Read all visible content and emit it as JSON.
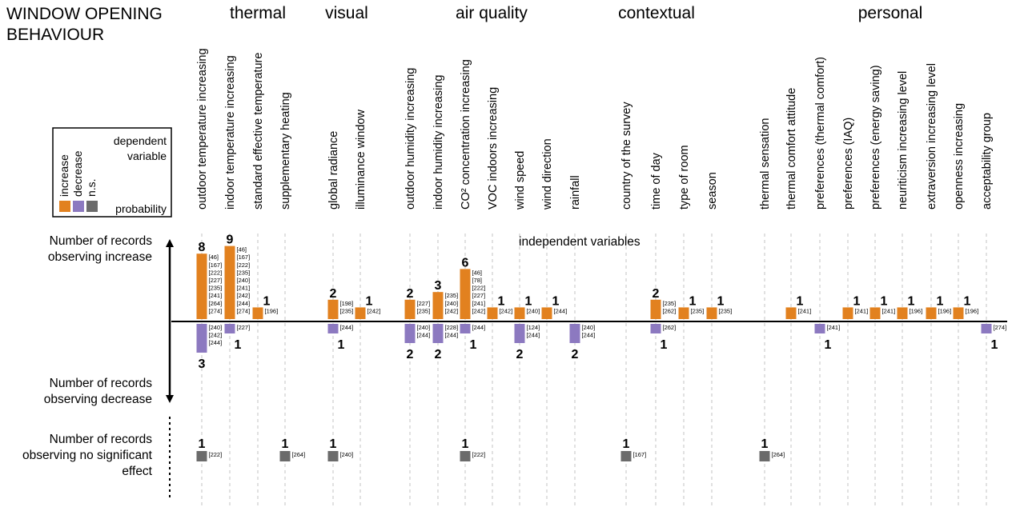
{
  "title": {
    "line1": "WINDOW OPENING",
    "line2": "BEHAVIOUR"
  },
  "colors": {
    "increase": "#E2811F",
    "decrease": "#8C79C0",
    "ns": "#6B6B6B"
  },
  "categories": [
    "thermal",
    "visual",
    "air quality",
    "contextual",
    "personal"
  ],
  "legend": {
    "labels": [
      "increase",
      "decrease",
      "n.s."
    ],
    "dependent_line1": "dependent",
    "dependent_line2": "variable",
    "probability": "probability"
  },
  "axis": {
    "increase_line1": "Number of records",
    "increase_line2": "observing increase",
    "decrease_line1": "Number of records",
    "decrease_line2": "observing decrease",
    "ns_line1": "Number of records",
    "ns_line2": "observing no significant",
    "ns_line3": "effect",
    "independent": "independent variables"
  },
  "chart_data": {
    "type": "bar",
    "series": [
      {
        "name": "increase"
      },
      {
        "name": "decrease"
      },
      {
        "name": "n.s."
      }
    ],
    "variables": [
      {
        "name": "outdoor temperature increasing",
        "category": "thermal",
        "inc": 8,
        "inc_refs": [
          "[46]",
          "[167]",
          "[222]",
          "[227]",
          "[235]",
          "[241]",
          "[264]",
          "[274]"
        ],
        "dec": 3,
        "dec_refs": [
          "[240]",
          "[242]",
          "[244]"
        ],
        "ns": 1,
        "ns_refs": [
          "[222]"
        ]
      },
      {
        "name": "indoor temperature increasing",
        "category": "thermal",
        "inc": 9,
        "inc_refs": [
          "[46]",
          "[167]",
          "[222]",
          "[235]",
          "[240]",
          "[241]",
          "[242]",
          "[244]",
          "[274]"
        ],
        "dec": 1,
        "dec_refs": [
          "[227]"
        ],
        "ns": 0,
        "ns_refs": []
      },
      {
        "name": "standard effective temperature",
        "category": "thermal",
        "inc": 1,
        "inc_refs": [
          "[196]"
        ],
        "dec": 0,
        "dec_refs": [],
        "ns": 0,
        "ns_refs": []
      },
      {
        "name": "supplementary heating",
        "category": "thermal",
        "inc": 0,
        "inc_refs": [],
        "dec": 0,
        "dec_refs": [],
        "ns": 1,
        "ns_refs": [
          "[264]"
        ]
      },
      {
        "name": "global radiance",
        "category": "visual",
        "inc": 2,
        "inc_refs": [
          "[198]",
          "[235]"
        ],
        "dec": 1,
        "dec_refs": [
          "[244]"
        ],
        "ns": 1,
        "ns_refs": [
          "[240]"
        ]
      },
      {
        "name": "illuminance window",
        "category": "visual",
        "inc": 1,
        "inc_refs": [
          "[242]"
        ],
        "dec": 0,
        "dec_refs": [],
        "ns": 0,
        "ns_refs": []
      },
      {
        "name": "outdoor humidity increasing",
        "category": "air quality",
        "inc": 2,
        "inc_refs": [
          "[227]",
          "[235]"
        ],
        "dec": 2,
        "dec_refs": [
          "[240]",
          "[244]"
        ],
        "ns": 0,
        "ns_refs": []
      },
      {
        "name": "indoor humidity increasing",
        "category": "air quality",
        "inc": 3,
        "inc_refs": [
          "[235]",
          "[240]",
          "[242]"
        ],
        "dec": 2,
        "dec_refs": [
          "[228]",
          "[244]"
        ],
        "ns": 0,
        "ns_refs": []
      },
      {
        "name": "CO² concentration increasing",
        "category": "air quality",
        "inc": 6,
        "inc_refs": [
          "[46]",
          "[78]",
          "[222]",
          "[227]",
          "[241]",
          "[242]"
        ],
        "dec": 1,
        "dec_refs": [
          "[244]"
        ],
        "ns": 1,
        "ns_refs": [
          "[222]"
        ]
      },
      {
        "name": "VOC indoors increasing",
        "category": "air quality",
        "inc": 1,
        "inc_refs": [
          "[242]"
        ],
        "dec": 0,
        "dec_refs": [],
        "ns": 0,
        "ns_refs": []
      },
      {
        "name": "wind speed",
        "category": "air quality",
        "inc": 1,
        "inc_refs": [
          "[240]"
        ],
        "dec": 2,
        "dec_refs": [
          "[124]",
          "[244]"
        ],
        "ns": 0,
        "ns_refs": []
      },
      {
        "name": "wind direction",
        "category": "air quality",
        "inc": 1,
        "inc_refs": [
          "[244]"
        ],
        "dec": 0,
        "dec_refs": [],
        "ns": 0,
        "ns_refs": []
      },
      {
        "name": "rainfall",
        "category": "air quality",
        "inc": 0,
        "inc_refs": [],
        "dec": 2,
        "dec_refs": [
          "[240]",
          "[244]"
        ],
        "ns": 0,
        "ns_refs": []
      },
      {
        "name": "country of the survey",
        "category": "contextual",
        "inc": 0,
        "inc_refs": [],
        "dec": 0,
        "dec_refs": [],
        "ns": 1,
        "ns_refs": [
          "[167]"
        ]
      },
      {
        "name": "time of day",
        "category": "contextual",
        "inc": 2,
        "inc_refs": [
          "[235]",
          "[262]"
        ],
        "dec": 1,
        "dec_refs": [
          "[262]"
        ],
        "ns": 0,
        "ns_refs": []
      },
      {
        "name": "type of room",
        "category": "contextual",
        "inc": 1,
        "inc_refs": [
          "[235]"
        ],
        "dec": 0,
        "dec_refs": [],
        "ns": 0,
        "ns_refs": []
      },
      {
        "name": "season",
        "category": "contextual",
        "inc": 1,
        "inc_refs": [
          "[235]"
        ],
        "dec": 0,
        "dec_refs": [],
        "ns": 0,
        "ns_refs": []
      },
      {
        "name": "thermal sensation",
        "category": "personal",
        "inc": 0,
        "inc_refs": [],
        "dec": 0,
        "dec_refs": [],
        "ns": 1,
        "ns_refs": [
          "[264]"
        ]
      },
      {
        "name": "thermal comfort attitude",
        "category": "personal",
        "inc": 1,
        "inc_refs": [
          "[241]"
        ],
        "dec": 0,
        "dec_refs": [],
        "ns": 0,
        "ns_refs": []
      },
      {
        "name": "preferences (thermal comfort)",
        "category": "personal",
        "inc": 0,
        "inc_refs": [],
        "dec": 1,
        "dec_refs": [
          "[241]"
        ],
        "ns": 0,
        "ns_refs": []
      },
      {
        "name": "preferences (IAQ)",
        "category": "personal",
        "inc": 1,
        "inc_refs": [
          "[241]"
        ],
        "dec": 0,
        "dec_refs": [],
        "ns": 0,
        "ns_refs": []
      },
      {
        "name": "preferences (energy saving)",
        "category": "personal",
        "inc": 1,
        "inc_refs": [
          "[241]"
        ],
        "dec": 0,
        "dec_refs": [],
        "ns": 0,
        "ns_refs": []
      },
      {
        "name": "neuriticism increasing level",
        "category": "personal",
        "inc": 1,
        "inc_refs": [
          "[196]"
        ],
        "dec": 0,
        "dec_refs": [],
        "ns": 0,
        "ns_refs": []
      },
      {
        "name": "extraversion increasing level",
        "category": "personal",
        "inc": 1,
        "inc_refs": [
          "[196]"
        ],
        "dec": 0,
        "dec_refs": [],
        "ns": 0,
        "ns_refs": []
      },
      {
        "name": "openness increasing",
        "category": "personal",
        "inc": 1,
        "inc_refs": [
          "[196]"
        ],
        "dec": 0,
        "dec_refs": [],
        "ns": 0,
        "ns_refs": []
      },
      {
        "name": "acceptability group",
        "category": "personal",
        "inc": 0,
        "inc_refs": [],
        "dec": 1,
        "dec_refs": [
          "[274]"
        ],
        "ns": 0,
        "ns_refs": []
      }
    ]
  }
}
